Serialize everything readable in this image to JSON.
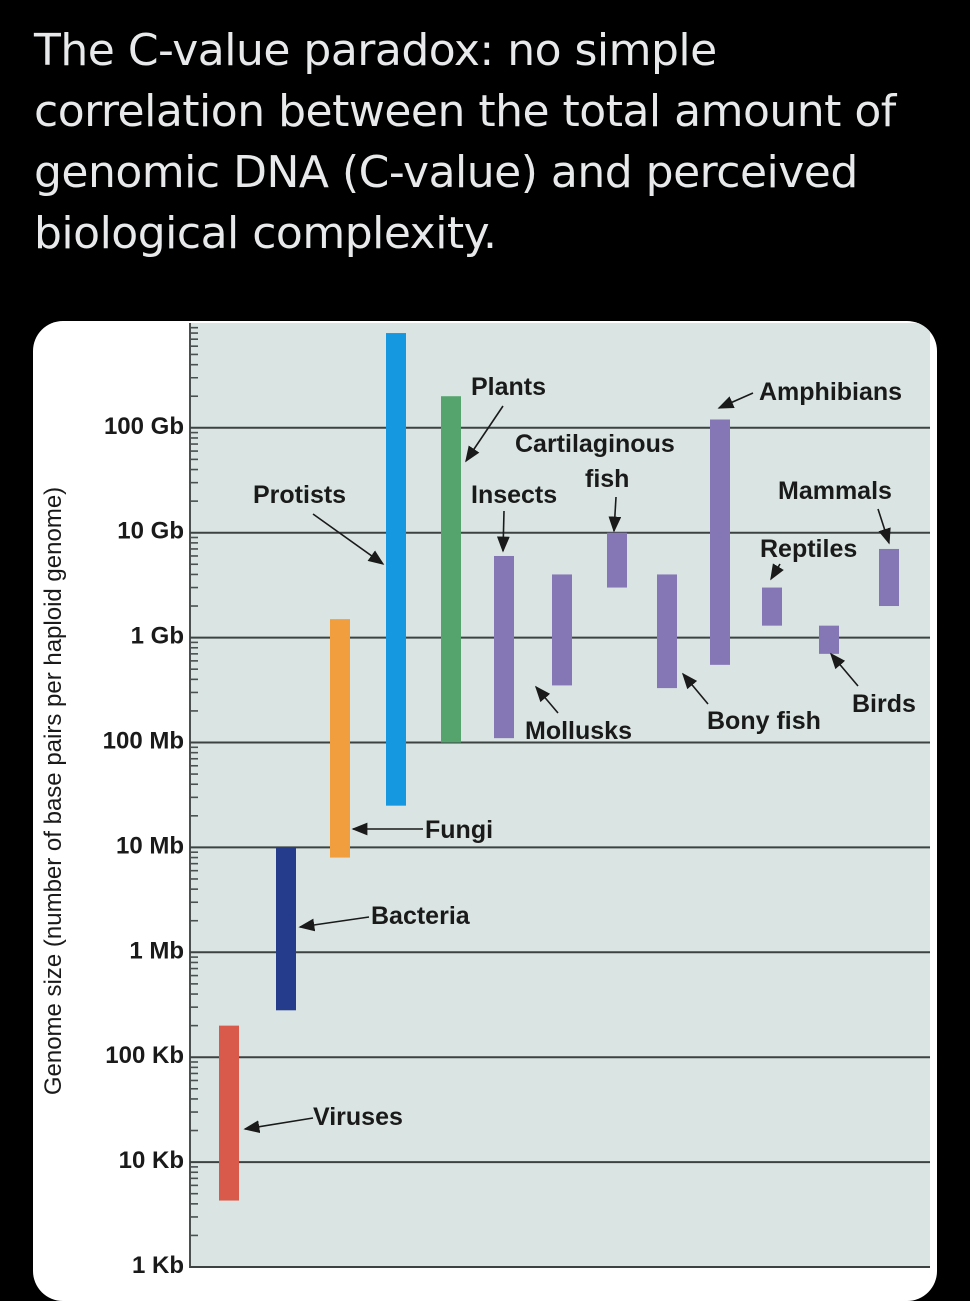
{
  "post": {
    "caption": "The C-value paradox: no simple correlation between the total amount of genomic DNA (C-value) and perceived biological complexity."
  },
  "colors": {
    "plot_background": "#dae5e3",
    "gridline": "#3c4142",
    "viruses": "#d9594a",
    "bacteria": "#253b8c",
    "fungi": "#f19e3e",
    "protists": "#1598e0",
    "plants": "#55a46d",
    "animals": "#8576b6"
  },
  "chart_data": {
    "type": "range-bar",
    "title": "",
    "xlabel": "",
    "ylabel": "Genome size (number of base pairs per haploid genome)",
    "yscale": "log",
    "ylim_bp": [
      1000,
      1000000000000
    ],
    "grid": true,
    "y_ticks": [
      {
        "label": "1 Kb",
        "value": 1000
      },
      {
        "label": "10 Kb",
        "value": 10000
      },
      {
        "label": "100 Kb",
        "value": 100000
      },
      {
        "label": "1 Mb",
        "value": 1000000
      },
      {
        "label": "10 Mb",
        "value": 10000000
      },
      {
        "label": "100 Mb",
        "value": 100000000
      },
      {
        "label": "1 Gb",
        "value": 1000000000
      },
      {
        "label": "10 Gb",
        "value": 10000000000
      },
      {
        "label": "100 Gb",
        "value": 100000000000
      }
    ],
    "series": [
      {
        "name": "Viruses",
        "min": 4300,
        "max": 200000,
        "color_key": "viruses"
      },
      {
        "name": "Bacteria",
        "min": 280000,
        "max": 10000000,
        "color_key": "bacteria"
      },
      {
        "name": "Fungi",
        "min": 8000000,
        "max": 1500000000,
        "color_key": "fungi"
      },
      {
        "name": "Protists",
        "min": 25000000,
        "max": 800000000000,
        "color_key": "protists"
      },
      {
        "name": "Plants",
        "min": 100000000,
        "max": 200000000000,
        "color_key": "plants"
      },
      {
        "name": "Insects",
        "min": 110000000,
        "max": 6000000000,
        "color_key": "animals"
      },
      {
        "name": "Mollusks",
        "min": 350000000,
        "max": 4000000000,
        "color_key": "animals"
      },
      {
        "name": "Cartilaginous fish",
        "min": 3000000000,
        "max": 10000000000,
        "color_key": "animals"
      },
      {
        "name": "Bony fish",
        "min": 330000000,
        "max": 4000000000,
        "color_key": "animals"
      },
      {
        "name": "Amphibians",
        "min": 550000000,
        "max": 120000000000,
        "color_key": "animals"
      },
      {
        "name": "Reptiles",
        "min": 1300000000,
        "max": 3000000000,
        "color_key": "animals"
      },
      {
        "name": "Birds",
        "min": 700000000,
        "max": 1300000000,
        "color_key": "animals"
      },
      {
        "name": "Mammals",
        "min": 2000000000,
        "max": 7000000000,
        "color_key": "animals"
      }
    ],
    "annotations": [
      {
        "text": "Viruses",
        "points_to": "Viruses"
      },
      {
        "text": "Bacteria",
        "points_to": "Bacteria"
      },
      {
        "text": "Fungi",
        "points_to": "Fungi"
      },
      {
        "text": "Protists",
        "points_to": "Protists"
      },
      {
        "text": "Plants",
        "points_to": "Plants"
      },
      {
        "text": "Insects",
        "points_to": "Insects"
      },
      {
        "text": "Mollusks",
        "points_to": "Mollusks"
      },
      {
        "text": "Cartilaginous",
        "points_to": "Cartilaginous fish"
      },
      {
        "text": "fish",
        "points_to": "Cartilaginous fish"
      },
      {
        "text": "Bony fish",
        "points_to": "Bony fish"
      },
      {
        "text": "Amphibians",
        "points_to": "Amphibians"
      },
      {
        "text": "Reptiles",
        "points_to": "Reptiles"
      },
      {
        "text": "Birds",
        "points_to": "Birds"
      },
      {
        "text": "Mammals",
        "points_to": "Mammals"
      }
    ]
  }
}
